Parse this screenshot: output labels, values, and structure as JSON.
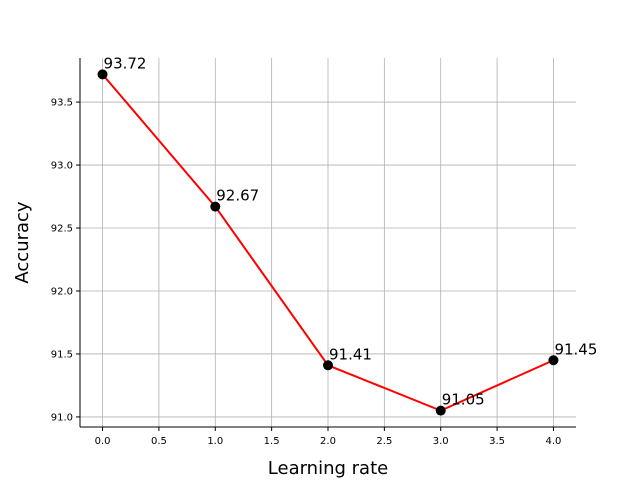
{
  "chart_data": {
    "type": "line",
    "title": "",
    "xlabel": "Learning rate",
    "ylabel": "Accuracy",
    "x": [
      0,
      1,
      2,
      3,
      4
    ],
    "series": [
      {
        "values": [
          93.72,
          92.67,
          91.41,
          91.05,
          91.45
        ],
        "color": "#ff0000",
        "marker_color": "#000000"
      }
    ],
    "data_labels": [
      "93.72",
      "92.67",
      "91.41",
      "91.05",
      "91.45"
    ],
    "xticks": [
      0.0,
      0.5,
      1.0,
      1.5,
      2.0,
      2.5,
      3.0,
      3.5,
      4.0
    ],
    "xtick_labels": [
      "0.0",
      "0.5",
      "1.0",
      "1.5",
      "2.0",
      "2.5",
      "3.0",
      "3.5",
      "4.0"
    ],
    "yticks": [
      91.0,
      91.5,
      92.0,
      92.5,
      93.0,
      93.5
    ],
    "ytick_labels": [
      "91.0",
      "91.5",
      "92.0",
      "92.5",
      "93.0",
      "93.5"
    ],
    "xlim": [
      -0.2,
      4.2
    ],
    "ylim": [
      90.92,
      93.85
    ],
    "grid": true,
    "legend": "none"
  }
}
